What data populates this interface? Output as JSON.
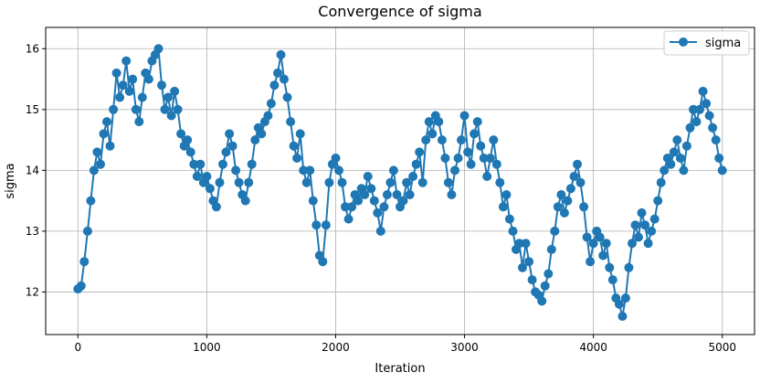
{
  "chart_data": {
    "type": "line",
    "title": "Convergence of sigma",
    "xlabel": "Iteration",
    "ylabel": "sigma",
    "xlim": [
      -250,
      5250
    ],
    "ylim": [
      11.3,
      16.35
    ],
    "xticks": [
      0,
      1000,
      2000,
      3000,
      4000,
      5000
    ],
    "yticks": [
      12,
      13,
      14,
      15,
      16
    ],
    "grid": true,
    "legend_position": "top-right",
    "marker": "circle",
    "series": [
      {
        "name": "sigma",
        "color": "#1f77b4",
        "points": [
          [
            0,
            12.05
          ],
          [
            25,
            12.1
          ],
          [
            50,
            12.5
          ],
          [
            75,
            13.0
          ],
          [
            100,
            13.5
          ],
          [
            125,
            14.0
          ],
          [
            150,
            14.3
          ],
          [
            175,
            14.1
          ],
          [
            200,
            14.6
          ],
          [
            225,
            14.8
          ],
          [
            250,
            14.4
          ],
          [
            275,
            15.0
          ],
          [
            300,
            15.6
          ],
          [
            325,
            15.2
          ],
          [
            350,
            15.4
          ],
          [
            375,
            15.8
          ],
          [
            400,
            15.3
          ],
          [
            425,
            15.5
          ],
          [
            450,
            15.0
          ],
          [
            475,
            14.8
          ],
          [
            500,
            15.2
          ],
          [
            525,
            15.6
          ],
          [
            550,
            15.5
          ],
          [
            575,
            15.8
          ],
          [
            600,
            15.9
          ],
          [
            625,
            16.0
          ],
          [
            650,
            15.4
          ],
          [
            675,
            15.0
          ],
          [
            700,
            15.2
          ],
          [
            725,
            14.9
          ],
          [
            750,
            15.3
          ],
          [
            775,
            15.0
          ],
          [
            800,
            14.6
          ],
          [
            825,
            14.4
          ],
          [
            850,
            14.5
          ],
          [
            875,
            14.3
          ],
          [
            900,
            14.1
          ],
          [
            925,
            13.9
          ],
          [
            950,
            14.1
          ],
          [
            975,
            13.8
          ],
          [
            1000,
            13.9
          ],
          [
            1025,
            13.7
          ],
          [
            1050,
            13.5
          ],
          [
            1075,
            13.4
          ],
          [
            1100,
            13.8
          ],
          [
            1125,
            14.1
          ],
          [
            1150,
            14.3
          ],
          [
            1175,
            14.6
          ],
          [
            1200,
            14.4
          ],
          [
            1225,
            14.0
          ],
          [
            1250,
            13.8
          ],
          [
            1275,
            13.6
          ],
          [
            1300,
            13.5
          ],
          [
            1325,
            13.8
          ],
          [
            1350,
            14.1
          ],
          [
            1375,
            14.5
          ],
          [
            1400,
            14.7
          ],
          [
            1425,
            14.6
          ],
          [
            1450,
            14.8
          ],
          [
            1475,
            14.9
          ],
          [
            1500,
            15.1
          ],
          [
            1525,
            15.4
          ],
          [
            1550,
            15.6
          ],
          [
            1575,
            15.9
          ],
          [
            1600,
            15.5
          ],
          [
            1625,
            15.2
          ],
          [
            1650,
            14.8
          ],
          [
            1675,
            14.4
          ],
          [
            1700,
            14.2
          ],
          [
            1725,
            14.6
          ],
          [
            1750,
            14.0
          ],
          [
            1775,
            13.8
          ],
          [
            1800,
            14.0
          ],
          [
            1825,
            13.5
          ],
          [
            1850,
            13.1
          ],
          [
            1875,
            12.6
          ],
          [
            1900,
            12.5
          ],
          [
            1925,
            13.1
          ],
          [
            1950,
            13.8
          ],
          [
            1975,
            14.1
          ],
          [
            2000,
            14.2
          ],
          [
            2025,
            14.0
          ],
          [
            2050,
            13.8
          ],
          [
            2075,
            13.4
          ],
          [
            2100,
            13.2
          ],
          [
            2125,
            13.4
          ],
          [
            2150,
            13.6
          ],
          [
            2175,
            13.5
          ],
          [
            2200,
            13.7
          ],
          [
            2225,
            13.6
          ],
          [
            2250,
            13.9
          ],
          [
            2275,
            13.7
          ],
          [
            2300,
            13.5
          ],
          [
            2325,
            13.3
          ],
          [
            2350,
            13.0
          ],
          [
            2375,
            13.4
          ],
          [
            2400,
            13.6
          ],
          [
            2425,
            13.8
          ],
          [
            2450,
            14.0
          ],
          [
            2475,
            13.6
          ],
          [
            2500,
            13.4
          ],
          [
            2525,
            13.5
          ],
          [
            2550,
            13.8
          ],
          [
            2575,
            13.6
          ],
          [
            2600,
            13.9
          ],
          [
            2625,
            14.1
          ],
          [
            2650,
            14.3
          ],
          [
            2675,
            13.8
          ],
          [
            2700,
            14.5
          ],
          [
            2725,
            14.8
          ],
          [
            2750,
            14.6
          ],
          [
            2775,
            14.9
          ],
          [
            2800,
            14.8
          ],
          [
            2825,
            14.5
          ],
          [
            2850,
            14.2
          ],
          [
            2875,
            13.8
          ],
          [
            2900,
            13.6
          ],
          [
            2925,
            14.0
          ],
          [
            2950,
            14.2
          ],
          [
            2975,
            14.5
          ],
          [
            3000,
            14.9
          ],
          [
            3025,
            14.3
          ],
          [
            3050,
            14.1
          ],
          [
            3075,
            14.6
          ],
          [
            3100,
            14.8
          ],
          [
            3125,
            14.4
          ],
          [
            3150,
            14.2
          ],
          [
            3175,
            13.9
          ],
          [
            3200,
            14.2
          ],
          [
            3225,
            14.5
          ],
          [
            3250,
            14.1
          ],
          [
            3275,
            13.8
          ],
          [
            3300,
            13.4
          ],
          [
            3325,
            13.6
          ],
          [
            3350,
            13.2
          ],
          [
            3375,
            13.0
          ],
          [
            3400,
            12.7
          ],
          [
            3425,
            12.8
          ],
          [
            3450,
            12.4
          ],
          [
            3475,
            12.8
          ],
          [
            3500,
            12.5
          ],
          [
            3525,
            12.2
          ],
          [
            3550,
            12.0
          ],
          [
            3575,
            11.95
          ],
          [
            3600,
            11.85
          ],
          [
            3625,
            12.1
          ],
          [
            3650,
            12.3
          ],
          [
            3675,
            12.7
          ],
          [
            3700,
            13.0
          ],
          [
            3725,
            13.4
          ],
          [
            3750,
            13.6
          ],
          [
            3775,
            13.3
          ],
          [
            3800,
            13.5
          ],
          [
            3825,
            13.7
          ],
          [
            3850,
            13.9
          ],
          [
            3875,
            14.1
          ],
          [
            3900,
            13.8
          ],
          [
            3925,
            13.4
          ],
          [
            3950,
            12.9
          ],
          [
            3975,
            12.5
          ],
          [
            4000,
            12.8
          ],
          [
            4025,
            13.0
          ],
          [
            4050,
            12.9
          ],
          [
            4075,
            12.6
          ],
          [
            4100,
            12.8
          ],
          [
            4125,
            12.4
          ],
          [
            4150,
            12.2
          ],
          [
            4175,
            11.9
          ],
          [
            4200,
            11.8
          ],
          [
            4225,
            11.6
          ],
          [
            4250,
            11.9
          ],
          [
            4275,
            12.4
          ],
          [
            4300,
            12.8
          ],
          [
            4325,
            13.1
          ],
          [
            4350,
            12.9
          ],
          [
            4375,
            13.3
          ],
          [
            4400,
            13.1
          ],
          [
            4425,
            12.8
          ],
          [
            4450,
            13.0
          ],
          [
            4475,
            13.2
          ],
          [
            4500,
            13.5
          ],
          [
            4525,
            13.8
          ],
          [
            4550,
            14.0
          ],
          [
            4575,
            14.2
          ],
          [
            4600,
            14.1
          ],
          [
            4625,
            14.3
          ],
          [
            4650,
            14.5
          ],
          [
            4675,
            14.2
          ],
          [
            4700,
            14.0
          ],
          [
            4725,
            14.4
          ],
          [
            4750,
            14.7
          ],
          [
            4775,
            15.0
          ],
          [
            4800,
            14.8
          ],
          [
            4825,
            15.0
          ],
          [
            4850,
            15.3
          ],
          [
            4875,
            15.1
          ],
          [
            4900,
            14.9
          ],
          [
            4925,
            14.7
          ],
          [
            4950,
            14.5
          ],
          [
            4975,
            14.2
          ],
          [
            5000,
            14.0
          ]
        ]
      }
    ]
  }
}
